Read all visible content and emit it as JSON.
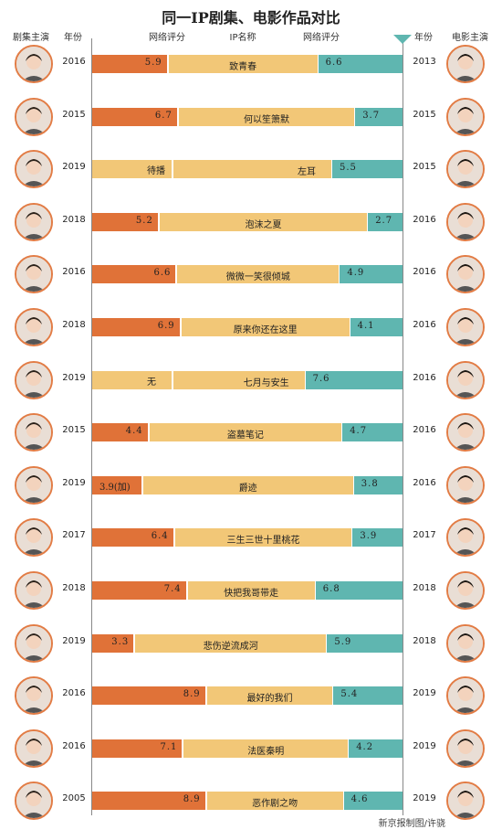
{
  "title": "同一IP剧集、电影作品对比",
  "headers": {
    "tv_actor": "剧集主演",
    "tv_year": "年份",
    "tv_score": "网络评分",
    "ip_name": "IP名称",
    "film_score": "网络评分",
    "film_year": "年份",
    "film_actor": "电影主演"
  },
  "credit": "新京报制图/许骁",
  "colors": {
    "tv": "#e07238",
    "ip": "#f2c777",
    "film": "#5fb6b0",
    "border": "#e27c45"
  },
  "chart_data": {
    "type": "table",
    "rows": [
      {
        "tv_year": "2016",
        "tv_score": 5.9,
        "tv_label": "5.9",
        "ip": "致青春",
        "film_score": 6.6,
        "film_label": "6.6",
        "film_year": "2013"
      },
      {
        "tv_year": "2015",
        "tv_score": 6.7,
        "tv_label": "6.7",
        "ip": "何以笙箫默",
        "film_score": 3.7,
        "film_label": "3.7",
        "film_year": "2015"
      },
      {
        "tv_year": "2019",
        "tv_score": null,
        "tv_label": "待播",
        "ip": "左耳",
        "film_score": 5.5,
        "film_label": "5.5",
        "film_year": "2015"
      },
      {
        "tv_year": "2018",
        "tv_score": 5.2,
        "tv_label": "5.2",
        "ip": "泡沫之夏",
        "film_score": 2.7,
        "film_label": "2.7",
        "film_year": "2016"
      },
      {
        "tv_year": "2016",
        "tv_score": 6.6,
        "tv_label": "6.6",
        "ip": "微微一笑很倾城",
        "film_score": 4.9,
        "film_label": "4.9",
        "film_year": "2016"
      },
      {
        "tv_year": "2018",
        "tv_score": 6.9,
        "tv_label": "6.9",
        "ip": "原来你还在这里",
        "film_score": 4.1,
        "film_label": "4.1",
        "film_year": "2016"
      },
      {
        "tv_year": "2019",
        "tv_score": null,
        "tv_label": "无",
        "ip": "七月与安生",
        "film_score": 7.6,
        "film_label": "7.6",
        "film_year": "2016"
      },
      {
        "tv_year": "2015",
        "tv_score": 4.4,
        "tv_label": "4.4",
        "ip": "盗墓笔记",
        "film_score": 4.7,
        "film_label": "4.7",
        "film_year": "2016"
      },
      {
        "tv_year": "2019",
        "tv_score": 3.9,
        "tv_label": "3.9(加)",
        "ip": "爵迹",
        "film_score": 3.8,
        "film_label": "3.8",
        "film_year": "2016"
      },
      {
        "tv_year": "2017",
        "tv_score": 6.4,
        "tv_label": "6.4",
        "ip": "三生三世十里桃花",
        "film_score": 3.9,
        "film_label": "3.9",
        "film_year": "2017"
      },
      {
        "tv_year": "2018",
        "tv_score": 7.4,
        "tv_label": "7.4",
        "ip": "快把我哥带走",
        "film_score": 6.8,
        "film_label": "6.8",
        "film_year": "2018"
      },
      {
        "tv_year": "2019",
        "tv_score": 3.3,
        "tv_label": "3.3",
        "ip": "悲伤逆流成河",
        "film_score": 5.9,
        "film_label": "5.9",
        "film_year": "2018"
      },
      {
        "tv_year": "2016",
        "tv_score": 8.9,
        "tv_label": "8.9",
        "ip": "最好的我们",
        "film_score": 5.4,
        "film_label": "5.4",
        "film_year": "2019"
      },
      {
        "tv_year": "2016",
        "tv_score": 7.1,
        "tv_label": "7.1",
        "ip": "法医秦明",
        "film_score": 4.2,
        "film_label": "4.2",
        "film_year": "2019"
      },
      {
        "tv_year": "2005",
        "tv_score": 8.9,
        "tv_label": "8.9",
        "ip": "恶作剧之吻",
        "film_score": 4.6,
        "film_label": "4.6",
        "film_year": "2019"
      }
    ]
  }
}
